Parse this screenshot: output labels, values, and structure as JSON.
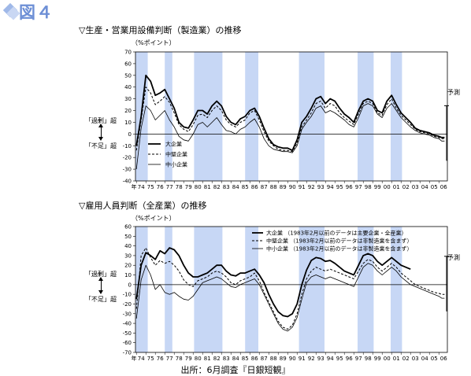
{
  "figure_label": "図４",
  "source": "出所：6月調査『日銀短観』",
  "shaded_periods_note": "recession shading",
  "shaded_periods": [
    [
      1973.9,
      1975.2
    ],
    [
      1977.0,
      1977.8
    ],
    [
      1980.1,
      1983.1
    ],
    [
      1985.5,
      1986.9
    ],
    [
      1991.2,
      1993.9
    ],
    [
      1997.4,
      1999.1
    ],
    [
      2000.9,
      2002.1
    ]
  ],
  "chart_data": [
    {
      "type": "line",
      "title": "▽生産・営業用設備判断（製造業）の推移",
      "unit": "（%ポイント）",
      "upper_note": "「過剰」超",
      "lower_note": "「不足」超",
      "forecast_label": "予測",
      "ylim": [
        -40,
        70
      ],
      "yticks": [
        70,
        60,
        50,
        40,
        30,
        20,
        10,
        0,
        -10,
        -20,
        -30,
        -40
      ],
      "xlim": [
        1973.9,
        2006.9
      ],
      "xticks": [
        "年",
        "74",
        "75",
        "76",
        "77",
        "78",
        "79",
        "80",
        "81",
        "82",
        "83",
        "84",
        "85",
        "86",
        "87",
        "88",
        "89",
        "90",
        "91",
        "92",
        "93",
        "94",
        "95",
        "96",
        "97",
        "98",
        "99",
        "00",
        "01",
        "02",
        "03",
        "04",
        "05",
        "06"
      ],
      "legend": "bottom-left",
      "series": [
        {
          "name": "大企業",
          "style": "thick",
          "x": [
            1974.0,
            1974.5,
            1975.0,
            1975.5,
            1976.0,
            1976.5,
            1977.0,
            1977.5,
            1978.0,
            1978.5,
            1979.0,
            1979.5,
            1980.0,
            1980.5,
            1981.0,
            1981.5,
            1982.0,
            1982.5,
            1983.0,
            1983.5,
            1984.0,
            1984.5,
            1985.0,
            1985.5,
            1986.0,
            1986.5,
            1987.0,
            1987.5,
            1988.0,
            1988.5,
            1989.0,
            1989.5,
            1990.0,
            1990.5,
            1991.0,
            1991.5,
            1992.0,
            1992.5,
            1993.0,
            1993.5,
            1994.0,
            1994.5,
            1995.0,
            1995.5,
            1996.0,
            1996.5,
            1997.0,
            1997.5,
            1998.0,
            1998.5,
            1999.0,
            1999.5,
            2000.0,
            2000.5,
            2001.0,
            2001.5,
            2002.0,
            2002.5,
            2003.0,
            2003.5,
            2004.0,
            2004.5,
            2005.0,
            2005.5,
            2006.0,
            2006.3,
            2006.6
          ],
          "values": [
            -10,
            15,
            50,
            45,
            33,
            35,
            38,
            30,
            22,
            10,
            6,
            5,
            12,
            20,
            20,
            17,
            24,
            28,
            24,
            15,
            10,
            8,
            13,
            15,
            20,
            22,
            15,
            5,
            -4,
            -9,
            -11,
            -12,
            -12,
            -14,
            -5,
            10,
            15,
            22,
            30,
            32,
            26,
            30,
            28,
            22,
            17,
            14,
            10,
            20,
            28,
            30,
            28,
            20,
            18,
            28,
            33,
            25,
            18,
            14,
            10,
            5,
            3,
            2,
            1,
            -1,
            -2,
            -3,
            -3
          ]
        },
        {
          "name": "中堅企業",
          "style": "dashed",
          "x": [
            1974.0,
            1974.5,
            1975.0,
            1975.5,
            1976.0,
            1976.5,
            1977.0,
            1977.5,
            1978.0,
            1978.5,
            1979.0,
            1979.5,
            1980.0,
            1980.5,
            1981.0,
            1981.5,
            1982.0,
            1982.5,
            1983.0,
            1983.5,
            1984.0,
            1984.5,
            1985.0,
            1985.5,
            1986.0,
            1986.5,
            1987.0,
            1987.5,
            1988.0,
            1988.5,
            1989.0,
            1989.5,
            1990.0,
            1990.5,
            1991.0,
            1991.5,
            1992.0,
            1992.5,
            1993.0,
            1993.5,
            1994.0,
            1994.5,
            1995.0,
            1995.5,
            1996.0,
            1996.5,
            1997.0,
            1997.5,
            1998.0,
            1998.5,
            1999.0,
            1999.5,
            2000.0,
            2000.5,
            2001.0,
            2001.5,
            2002.0,
            2002.5,
            2003.0,
            2003.5,
            2004.0,
            2004.5,
            2005.0,
            2005.5,
            2006.0,
            2006.3,
            2006.6
          ],
          "values": [
            -14,
            12,
            40,
            35,
            25,
            28,
            32,
            27,
            18,
            8,
            4,
            2,
            8,
            16,
            17,
            14,
            20,
            24,
            20,
            12,
            8,
            6,
            10,
            12,
            18,
            20,
            12,
            2,
            -6,
            -10,
            -13,
            -14,
            -14,
            -15,
            -8,
            6,
            12,
            18,
            26,
            28,
            22,
            26,
            24,
            18,
            14,
            11,
            8,
            17,
            26,
            28,
            26,
            18,
            16,
            25,
            30,
            22,
            16,
            12,
            8,
            4,
            2,
            1,
            0,
            -2,
            -3,
            -4,
            -4
          ]
        },
        {
          "name": "中小企業",
          "style": "thin",
          "x": [
            1974.0,
            1974.5,
            1975.0,
            1975.5,
            1976.0,
            1976.5,
            1977.0,
            1977.5,
            1978.0,
            1978.5,
            1979.0,
            1979.5,
            1980.0,
            1980.5,
            1981.0,
            1981.5,
            1982.0,
            1982.5,
            1983.0,
            1983.5,
            1984.0,
            1984.5,
            1985.0,
            1985.5,
            1986.0,
            1986.5,
            1987.0,
            1987.5,
            1988.0,
            1988.5,
            1989.0,
            1989.5,
            1990.0,
            1990.5,
            1991.0,
            1991.5,
            1992.0,
            1992.5,
            1993.0,
            1993.5,
            1994.0,
            1994.5,
            1995.0,
            1995.5,
            1996.0,
            1996.5,
            1997.0,
            1997.5,
            1998.0,
            1998.5,
            1999.0,
            1999.5,
            2000.0,
            2000.5,
            2001.0,
            2001.5,
            2002.0,
            2002.5,
            2003.0,
            2003.5,
            2004.0,
            2004.5,
            2005.0,
            2005.5,
            2006.0,
            2006.3,
            2006.6
          ],
          "values": [
            -30,
            5,
            24,
            20,
            12,
            16,
            20,
            12,
            6,
            -2,
            -5,
            -6,
            0,
            8,
            10,
            6,
            10,
            14,
            8,
            3,
            2,
            0,
            4,
            6,
            10,
            13,
            6,
            -4,
            -10,
            -13,
            -14,
            -15,
            -15,
            -16,
            -10,
            4,
            10,
            15,
            22,
            24,
            18,
            20,
            18,
            15,
            12,
            8,
            6,
            14,
            24,
            26,
            24,
            17,
            14,
            22,
            26,
            20,
            14,
            10,
            6,
            3,
            1,
            0,
            -1,
            -3,
            -4,
            -6,
            -6
          ]
        }
      ]
    },
    {
      "type": "line",
      "title": "▽雇用人員判断（全産業）の推移",
      "unit": "（%ポイント）",
      "upper_note": "「過剰」超",
      "lower_note": "「不足」超",
      "forecast_label": "予測",
      "ylim": [
        -70,
        60
      ],
      "yticks": [
        60,
        50,
        40,
        30,
        20,
        10,
        0,
        -10,
        -20,
        -30,
        -40,
        -50,
        -60,
        -70
      ],
      "xlim": [
        1973.9,
        2006.9
      ],
      "xticks": [
        "年",
        "74",
        "75",
        "76",
        "77",
        "78",
        "79",
        "80",
        "81",
        "82",
        "83",
        "84",
        "85",
        "86",
        "87",
        "88",
        "89",
        "90",
        "91",
        "92",
        "93",
        "94",
        "95",
        "96",
        "97",
        "98",
        "99",
        "00",
        "01",
        "02",
        "03",
        "04",
        "05",
        "06"
      ],
      "legend": "top-right",
      "series": [
        {
          "name": "大企業 （1983年2月以前のデータは主要企業・全産業）",
          "style": "thick",
          "x": [
            1974.0,
            1974.5,
            1975.0,
            1975.5,
            1976.0,
            1976.5,
            1977.0,
            1977.5,
            1978.0,
            1978.5,
            1979.0,
            1979.5,
            1980.0,
            1980.5,
            1981.0,
            1981.5,
            1982.0,
            1982.5,
            1983.0,
            1983.5,
            1984.0,
            1984.5,
            1985.0,
            1985.5,
            1986.0,
            1986.5,
            1987.0,
            1987.5,
            1988.0,
            1988.5,
            1989.0,
            1989.5,
            1990.0,
            1990.5,
            1991.0,
            1991.5,
            1992.0,
            1992.5,
            1993.0,
            1993.5,
            1994.0,
            1994.5,
            1995.0,
            1995.5,
            1996.0,
            1996.5,
            1997.0,
            1997.5,
            1998.0,
            1998.5,
            1999.0,
            1999.5,
            2000.0,
            2000.5,
            2001.0,
            2001.5,
            2002.0,
            2002.5,
            2003.0
          ],
          "values": [
            -15,
            20,
            33,
            30,
            26,
            35,
            32,
            38,
            36,
            30,
            20,
            12,
            8,
            8,
            10,
            12,
            16,
            20,
            20,
            14,
            10,
            9,
            12,
            12,
            14,
            16,
            10,
            2,
            -10,
            -20,
            -28,
            -32,
            -33,
            -30,
            -20,
            0,
            15,
            25,
            28,
            27,
            24,
            25,
            22,
            18,
            14,
            12,
            10,
            20,
            30,
            32,
            30,
            24,
            20,
            24,
            28,
            24,
            20,
            18,
            16
          ]
        },
        {
          "name": "中堅企業 （1983年2月以前のデータは非製造業を含まず）",
          "style": "dashed",
          "x": [
            1974.0,
            1974.5,
            1975.0,
            1975.5,
            1976.0,
            1976.5,
            1977.0,
            1977.5,
            1978.0,
            1978.5,
            1979.0,
            1979.5,
            1980.0,
            1980.5,
            1981.0,
            1981.5,
            1982.0,
            1982.5,
            1983.0,
            1983.5,
            1984.0,
            1984.5,
            1985.0,
            1985.5,
            1986.0,
            1986.5,
            1987.0,
            1987.5,
            1988.0,
            1988.5,
            1989.0,
            1989.5,
            1990.0,
            1990.5,
            1991.0,
            1991.5,
            1992.0,
            1992.5,
            1993.0,
            1993.5,
            1994.0,
            1994.5,
            1995.0,
            1995.5,
            1996.0,
            1996.5,
            1997.0,
            1997.5,
            1998.0,
            1998.5,
            1999.0,
            1999.5,
            2000.0,
            2000.5,
            2001.0,
            2001.5,
            2002.0,
            2002.5,
            2003.0,
            2003.5,
            2004.0,
            2004.5,
            2005.0,
            2005.5,
            2006.0,
            2006.3,
            2006.6
          ],
          "values": [
            -25,
            30,
            38,
            28,
            20,
            25,
            22,
            24,
            20,
            14,
            5,
            0,
            -2,
            4,
            6,
            8,
            12,
            14,
            12,
            8,
            2,
            0,
            4,
            6,
            8,
            12,
            4,
            -8,
            -18,
            -28,
            -38,
            -44,
            -46,
            -42,
            -30,
            -10,
            6,
            14,
            18,
            16,
            14,
            16,
            14,
            12,
            10,
            8,
            6,
            14,
            22,
            26,
            24,
            18,
            14,
            18,
            22,
            18,
            12,
            8,
            4,
            0,
            -2,
            -4,
            -6,
            -8,
            -9,
            -10,
            -10
          ]
        },
        {
          "name": "中小企業 （1983年2月以前のデータは非製造業を含まず）",
          "style": "thin",
          "x": [
            1974.0,
            1974.5,
            1975.0,
            1975.5,
            1976.0,
            1976.5,
            1977.0,
            1977.5,
            1978.0,
            1978.5,
            1979.0,
            1979.5,
            1980.0,
            1980.5,
            1981.0,
            1981.5,
            1982.0,
            1982.5,
            1983.0,
            1983.5,
            1984.0,
            1984.5,
            1985.0,
            1985.5,
            1986.0,
            1986.5,
            1987.0,
            1987.5,
            1988.0,
            1988.5,
            1989.0,
            1989.5,
            1990.0,
            1990.5,
            1991.0,
            1991.5,
            1992.0,
            1992.5,
            1993.0,
            1993.5,
            1994.0,
            1994.5,
            1995.0,
            1995.5,
            1996.0,
            1996.5,
            1997.0,
            1997.5,
            1998.0,
            1998.5,
            1999.0,
            1999.5,
            2000.0,
            2000.5,
            2001.0,
            2001.5,
            2002.0,
            2002.5,
            2003.0,
            2003.5,
            2004.0,
            2004.5,
            2005.0,
            2005.5,
            2006.0,
            2006.3,
            2006.6
          ],
          "values": [
            -35,
            5,
            20,
            10,
            -5,
            0,
            -8,
            -10,
            -8,
            -12,
            -15,
            -16,
            -12,
            -5,
            2,
            4,
            6,
            8,
            6,
            2,
            -2,
            -3,
            0,
            2,
            4,
            6,
            0,
            -10,
            -20,
            -30,
            -40,
            -46,
            -48,
            -44,
            -34,
            -15,
            2,
            8,
            10,
            8,
            6,
            8,
            6,
            4,
            2,
            0,
            -2,
            8,
            18,
            22,
            20,
            14,
            10,
            14,
            18,
            14,
            8,
            4,
            0,
            -2,
            -4,
            -6,
            -8,
            -10,
            -12,
            -14,
            -14
          ]
        }
      ]
    }
  ]
}
